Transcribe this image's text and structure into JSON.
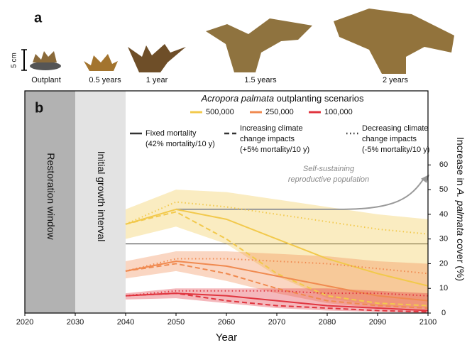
{
  "panel_a": {
    "label": "a",
    "scale_label": "5 cm",
    "stages": [
      "Outplant",
      "0.5 years",
      "1 year",
      "1.5 years",
      "2 years"
    ]
  },
  "chart_data": {
    "type": "line",
    "panel_label": "b",
    "periods": [
      {
        "label": "Restoration window",
        "start": 2020,
        "end": 2030,
        "color": "#b2b2b2"
      },
      {
        "label": "Initial growth interval",
        "start": 2030,
        "end": 2040,
        "color": "#e3e3e3"
      }
    ],
    "x_label": "Year",
    "y_label": [
      "Increase in ",
      "A. palmata",
      " cover (%)"
    ],
    "xlim": [
      2020,
      2100
    ],
    "xticks": [
      2020,
      2030,
      2040,
      2050,
      2060,
      2070,
      2080,
      2090,
      2100
    ],
    "ylim": [
      0,
      90
    ],
    "yticks": [
      0,
      10,
      20,
      30,
      40,
      50,
      60
    ],
    "reference_line": 28,
    "legend_title": [
      "Acropora palmata",
      " outplanting scenarios"
    ],
    "sizes": [
      {
        "name": "500,000",
        "color": "#f2c94c"
      },
      {
        "name": "250,000",
        "color": "#f08a50"
      },
      {
        "name": "100,000",
        "color": "#e0353f"
      }
    ],
    "scenarios": [
      {
        "dash": "solid",
        "label": [
          "Fixed mortality",
          "(42% mortality/10 y)"
        ]
      },
      {
        "dash": "dashed",
        "label": [
          "Increasing climate",
          "change impacts",
          "(+5% mortality/10 y)"
        ]
      },
      {
        "dash": "dotted",
        "label": [
          "Decreasing climate",
          "change impacts",
          "(-5% mortality/10 y)"
        ]
      }
    ],
    "annotation": [
      "Self-sustaining",
      "reproductive population"
    ],
    "x": [
      2040,
      2050,
      2060,
      2070,
      2080,
      2090,
      2100
    ],
    "bands": [
      {
        "color": "#f2c94c",
        "upper": [
          42,
          50,
          49,
          46,
          43,
          40,
          38
        ],
        "lower": [
          30,
          35,
          28,
          15,
          6,
          3,
          2
        ]
      },
      {
        "color": "#f08a50",
        "upper": [
          21,
          25,
          25,
          24,
          23,
          21,
          20
        ],
        "lower": [
          14,
          17,
          13,
          8,
          4,
          2,
          1
        ]
      },
      {
        "color": "#e0353f",
        "upper": [
          8,
          10,
          10,
          10,
          10,
          9,
          8
        ],
        "lower": [
          5.5,
          6,
          4,
          2,
          1,
          0.5,
          0
        ]
      }
    ],
    "series": [
      {
        "color": "#f2c94c",
        "dash": "solid",
        "values": [
          36,
          42,
          38,
          30,
          22,
          16,
          11
        ]
      },
      {
        "color": "#f2c94c",
        "dash": "dashed",
        "values": [
          36,
          41,
          30,
          16,
          7,
          4,
          3
        ]
      },
      {
        "color": "#f2c94c",
        "dash": "dotted",
        "values": [
          36,
          45,
          43,
          40,
          37,
          34,
          32
        ]
      },
      {
        "color": "#f08a50",
        "dash": "solid",
        "values": [
          17,
          21,
          19,
          15,
          11,
          7,
          5
        ]
      },
      {
        "color": "#f08a50",
        "dash": "dashed",
        "values": [
          17,
          20,
          16,
          10,
          5,
          3,
          2
        ]
      },
      {
        "color": "#f08a50",
        "dash": "dotted",
        "values": [
          17,
          22,
          22,
          21,
          20,
          18,
          16
        ]
      },
      {
        "color": "#e0353f",
        "dash": "solid",
        "values": [
          7,
          8,
          7,
          5,
          3,
          2,
          1
        ]
      },
      {
        "color": "#e0353f",
        "dash": "dashed",
        "values": [
          7,
          8,
          5,
          3,
          2,
          1,
          0.5
        ]
      },
      {
        "color": "#e0353f",
        "dash": "dotted",
        "values": [
          7,
          9,
          9,
          9,
          8,
          8,
          7
        ]
      }
    ]
  }
}
